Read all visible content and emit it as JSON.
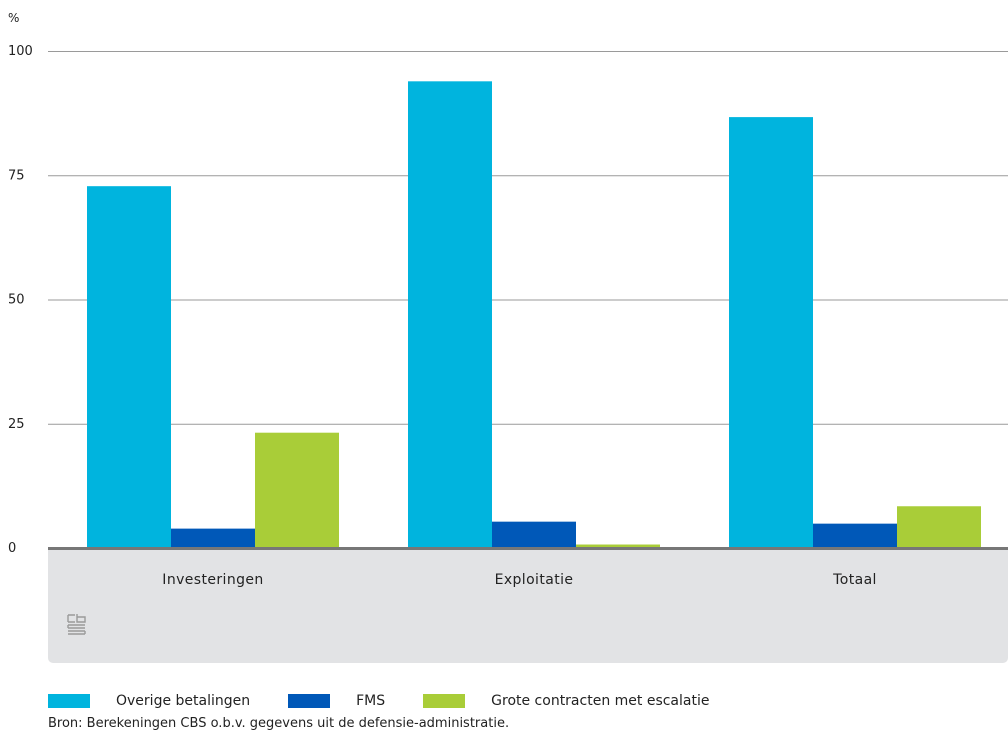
{
  "chart_data": {
    "type": "bar",
    "unit_label": "%",
    "categories": [
      "Investeringen",
      "Exploitatie",
      "Totaal"
    ],
    "series": [
      {
        "name": "Overige betalingen",
        "color": "#00b4de",
        "values": [
          72.8,
          93.9,
          86.7
        ]
      },
      {
        "name": "FMS",
        "color": "#0058b8",
        "values": [
          3.9,
          5.3,
          4.9
        ]
      },
      {
        "name": "Grote contracten met escalatie",
        "color": "#a9cd38",
        "values": [
          23.2,
          0.7,
          8.4
        ]
      }
    ],
    "yticks": [
      0,
      25,
      50,
      75,
      100
    ],
    "ylim": [
      0,
      100
    ],
    "grid": true,
    "legend_position": "bottom"
  },
  "logo_icon": "cbs-logo-icon",
  "source": "Bron: Berekeningen CBS o.b.v. gegevens uit de defensie-administratie."
}
